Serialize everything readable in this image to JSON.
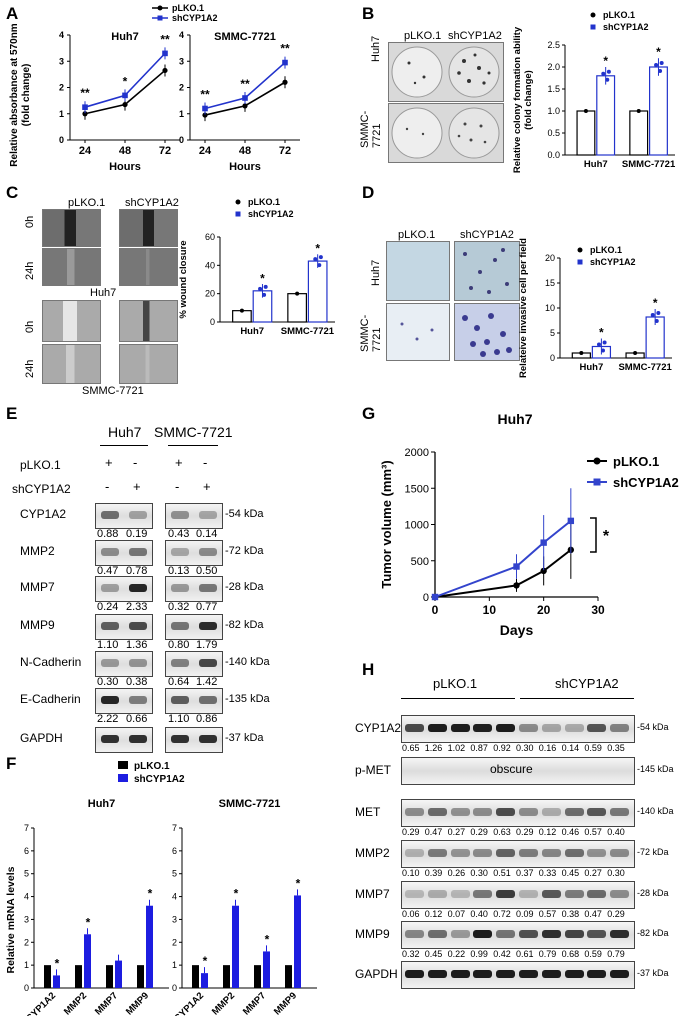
{
  "panels": {
    "A": "A",
    "B": "B",
    "C": "C",
    "D": "D",
    "E": "E",
    "F": "F",
    "G": "G",
    "H": "H"
  },
  "panelA": {
    "legend": [
      "pLKO.1",
      "shCYP1A2"
    ],
    "ylabel": "Relative absorbance at 570nm\n(fold change)",
    "xlabel": "Hours",
    "colors": {
      "pLKO.1": "#000000",
      "shCYP1A2": "#2233cc"
    },
    "charts": [
      {
        "title": "Huh7",
        "x": [
          "24",
          "48",
          "72"
        ],
        "yticks": [
          "0",
          "1",
          "2",
          "3",
          "4"
        ],
        "series": [
          {
            "name": "pLKO.1",
            "values": [
              1.0,
              1.35,
              2.65
            ]
          },
          {
            "name": "shCYP1A2",
            "values": [
              1.25,
              1.7,
              3.3
            ]
          }
        ],
        "stars": [
          "**",
          "*",
          "**"
        ]
      },
      {
        "title": "SMMC-7721",
        "x": [
          "24",
          "48",
          "72"
        ],
        "yticks": [
          "0",
          "1",
          "2",
          "3",
          "4"
        ],
        "series": [
          {
            "name": "pLKO.1",
            "values": [
              0.95,
              1.3,
              2.2
            ]
          },
          {
            "name": "shCYP1A2",
            "values": [
              1.2,
              1.6,
              2.95
            ]
          }
        ],
        "stars": [
          "**",
          "**",
          "**"
        ]
      }
    ]
  },
  "panelB": {
    "cols": [
      "pLKO.1",
      "shCYP1A2"
    ],
    "rows": [
      "Huh7",
      "SMMC-\n7721"
    ],
    "legend": [
      "pLKO.1",
      "shCYP1A2"
    ],
    "ylabel": "Relative colony formation ability\n(fold change)",
    "categories": [
      "Huh7",
      "SMMC-7721"
    ],
    "yticks": [
      "0.0",
      "0.5",
      "1.0",
      "1.5",
      "2.0",
      "2.5"
    ],
    "values": {
      "pLKO.1": [
        1.0,
        1.0
      ],
      "shCYP1A2": [
        1.8,
        2.0
      ]
    },
    "stars": [
      "*",
      "*"
    ]
  },
  "panelC": {
    "cols": [
      "pLKO.1",
      "shCYP1A2"
    ],
    "rows": [
      "0h",
      "24h",
      "0h",
      "24h"
    ],
    "cellLines": [
      "Huh7",
      "SMMC-7721"
    ],
    "legend": [
      "pLKO.1",
      "shCYP1A2"
    ],
    "ylabel": "% wound closure",
    "categories": [
      "Huh7",
      "SMMC-7721"
    ],
    "yticks": [
      "0",
      "20",
      "40",
      "60"
    ],
    "values": {
      "pLKO.1": [
        8,
        20
      ],
      "shCYP1A2": [
        22,
        43
      ]
    },
    "stars": [
      "*",
      "*"
    ]
  },
  "panelD": {
    "cols": [
      "pLKO.1",
      "shCYP1A2"
    ],
    "rows": [
      "Huh7",
      "SMMC-\n7721"
    ],
    "legend": [
      "pLKO.1",
      "shCYP1A2"
    ],
    "ylabel": "Relateive invasive cell per field",
    "categories": [
      "Huh7",
      "SMMC-7721"
    ],
    "yticks": [
      "0",
      "5",
      "10",
      "15",
      "20"
    ],
    "values": {
      "pLKO.1": [
        1.0,
        1.0
      ],
      "shCYP1A2": [
        2.3,
        8.2
      ]
    },
    "stars": [
      "*",
      "*"
    ]
  },
  "panelE": {
    "cellLines": [
      "Huh7",
      "SMMC-7721"
    ],
    "conditionLabels": [
      "pLKO.1",
      "shCYP1A2"
    ],
    "pLKO": [
      "+",
      "-",
      "+",
      "-"
    ],
    "shCYP": [
      "-",
      "+",
      "-",
      "+"
    ],
    "rows": [
      {
        "name": "CYP1A2",
        "kda": "-54  kDa",
        "vals": [
          "0.88",
          "0.19",
          "0.43",
          "0.14"
        ]
      },
      {
        "name": "MMP2",
        "kda": "-72 kDa",
        "vals": [
          "0.47",
          "0.78",
          "0.13",
          "0.50"
        ]
      },
      {
        "name": "MMP7",
        "kda": "-28 kDa",
        "vals": [
          "0.24",
          "2.33",
          "0.32",
          "0.77"
        ]
      },
      {
        "name": "MMP9",
        "kda": "-82 kDa",
        "vals": [
          "1.10",
          "1.36",
          "0.80",
          "1.79"
        ]
      },
      {
        "name": "N-Cadherin",
        "kda": "-140 kDa",
        "vals": [
          "0.30",
          "0.38",
          "0.64",
          "1.42"
        ]
      },
      {
        "name": "E-Cadherin",
        "kda": "-135 kDa",
        "vals": [
          "2.22",
          "0.66",
          "1.10",
          "0.86"
        ]
      },
      {
        "name": "GAPDH",
        "kda": "-37 kDa",
        "vals": [
          "",
          "",
          "",
          ""
        ]
      }
    ]
  },
  "panelF": {
    "legend": [
      "pLKO.1",
      "shCYP1A2"
    ],
    "colors": {
      "pLKO.1": "#000000",
      "shCYP1A2": "#1d1de0"
    },
    "ylabel": "Relative mRNA levels",
    "yticks": [
      "0",
      "1",
      "2",
      "3",
      "4",
      "5",
      "6",
      "7"
    ],
    "categories": [
      "CYP1A2",
      "MMP2",
      "MMP7",
      "MMP9"
    ],
    "charts": [
      {
        "title": "Huh7",
        "pLKO": [
          1,
          1,
          1,
          1
        ],
        "sh": [
          0.55,
          2.35,
          1.2,
          3.6
        ],
        "stars": [
          "*",
          "*",
          "",
          "*"
        ]
      },
      {
        "title": "SMMC-7721",
        "pLKO": [
          1,
          1,
          1,
          1
        ],
        "sh": [
          0.65,
          3.6,
          1.6,
          4.05
        ],
        "stars": [
          "*",
          "*",
          "*",
          "*"
        ]
      }
    ]
  },
  "panelG": {
    "title": "Huh7",
    "ylabel": "Tumor volume (mm³)",
    "xlabel": "Days",
    "xticks": [
      "0",
      "10",
      "20",
      "30"
    ],
    "yticks": [
      "0",
      "500",
      "1000",
      "1500",
      "2000"
    ],
    "legend": [
      "pLKO.1",
      "shCYP1A2"
    ],
    "colors": {
      "pLKO.1": "#000000",
      "shCYP1A2": "#3344cc"
    },
    "series": [
      {
        "name": "pLKO.1",
        "x": [
          0,
          15,
          20,
          25
        ],
        "y": [
          0,
          160,
          360,
          650
        ]
      },
      {
        "name": "shCYP1A2",
        "x": [
          0,
          15,
          20,
          25
        ],
        "y": [
          0,
          420,
          750,
          1050
        ]
      }
    ],
    "star": "*"
  },
  "panelH": {
    "groups": [
      "pLKO.1",
      "shCYP1A2"
    ],
    "rows": [
      {
        "name": "CYP1A2",
        "kda": "-54 kDa",
        "vals": [
          "0.65",
          "1.26",
          "1.02",
          "0.87",
          "0.92",
          "0.30",
          "0.16",
          "0.14",
          "0.59",
          "0.35"
        ]
      },
      {
        "name": "p-MET",
        "kda": "-145 kDa",
        "vals": [],
        "note": "obscure"
      },
      {
        "name": "MET",
        "kda": "-140 kDa",
        "vals": [
          "0.29",
          "0.47",
          "0.27",
          "0.29",
          "0.63",
          "0.29",
          "0.12",
          "0.46",
          "0.57",
          "0.40"
        ]
      },
      {
        "name": "MMP2",
        "kda": "-72 kDa",
        "vals": [
          "0.10",
          "0.39",
          "0.26",
          "0.30",
          "0.51",
          "0.37",
          "0.33",
          "0.45",
          "0.27",
          "0.30"
        ]
      },
      {
        "name": "MMP7",
        "kda": "-28 kDa",
        "vals": [
          "0.06",
          "0.12",
          "0.07",
          "0.40",
          "0.72",
          "0.09",
          "0.57",
          "0.38",
          "0.47",
          "0.29"
        ]
      },
      {
        "name": "MMP9",
        "kda": "-82 kDa",
        "vals": [
          "0.32",
          "0.45",
          "0.22",
          "0.99",
          "0.42",
          "0.61",
          "0.79",
          "0.68",
          "0.59",
          "0.79"
        ]
      },
      {
        "name": "GAPDH",
        "kda": "-37 kDa",
        "vals": []
      }
    ]
  }
}
